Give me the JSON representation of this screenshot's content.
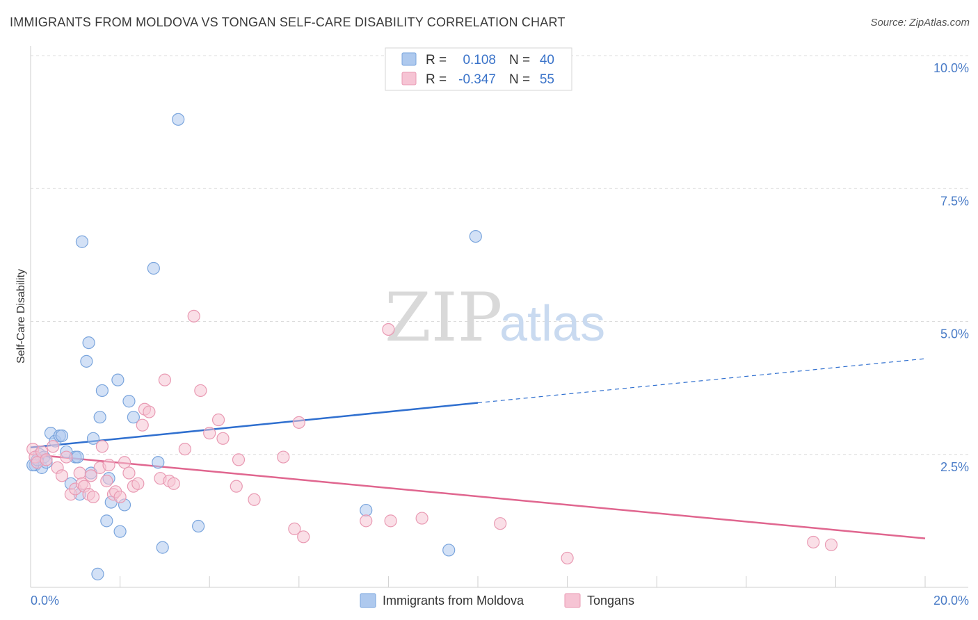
{
  "title": "IMMIGRANTS FROM MOLDOVA VS TONGAN SELF-CARE DISABILITY CORRELATION CHART",
  "source": "Source: ZipAtlas.com",
  "watermark": {
    "zip": "ZIP",
    "atlas": "atlas"
  },
  "legend": {
    "r_label": "R =",
    "n_label": "N =",
    "rows": [
      {
        "r": "0.108",
        "n": "40",
        "color": "#aec9ee",
        "stroke": "#7aa5dd"
      },
      {
        "r": "-0.347",
        "n": "55",
        "color": "#f6c4d4",
        "stroke": "#e99ab3"
      }
    ]
  },
  "bottom_legend": [
    {
      "label": "Immigrants from Moldova",
      "color": "#aec9ee",
      "stroke": "#7aa5dd"
    },
    {
      "label": "Tongans",
      "color": "#f6c4d4",
      "stroke": "#e99ab3"
    }
  ],
  "chart_data": {
    "type": "scatter",
    "title": "IMMIGRANTS FROM MOLDOVA VS TONGAN SELF-CARE DISABILITY CORRELATION CHART",
    "xlabel": "",
    "ylabel": "Self-Care Disability",
    "xlim": [
      0,
      20
    ],
    "ylim": [
      0,
      10
    ],
    "x_tick_labels": [
      "0.0%",
      "20.0%"
    ],
    "y_ticks": [
      2.5,
      5.0,
      7.5,
      10.0
    ],
    "y_tick_labels": [
      "2.5%",
      "5.0%",
      "7.5%",
      "10.0%"
    ],
    "grid": true,
    "legend_position": "top-center",
    "series": [
      {
        "name": "Immigrants from Moldova",
        "color": "#7aa5dd",
        "fill": "#aec9ee",
        "trend_color": "#2f6fcf",
        "trend": {
          "x0": 0,
          "y0": 2.63,
          "x1": 10,
          "y1": 3.47,
          "dash_to_x": 20,
          "dash_to_y": 4.3
        },
        "points": [
          [
            0.1,
            2.3
          ],
          [
            0.2,
            2.5
          ],
          [
            0.25,
            2.25
          ],
          [
            0.3,
            2.45
          ],
          [
            0.35,
            2.35
          ],
          [
            0.45,
            2.9
          ],
          [
            0.55,
            2.75
          ],
          [
            0.65,
            2.85
          ],
          [
            0.7,
            2.85
          ],
          [
            0.8,
            2.55
          ],
          [
            0.9,
            1.95
          ],
          [
            1.0,
            2.45
          ],
          [
            1.05,
            2.45
          ],
          [
            1.1,
            1.75
          ],
          [
            1.15,
            6.5
          ],
          [
            1.25,
            4.25
          ],
          [
            1.3,
            4.6
          ],
          [
            1.35,
            2.15
          ],
          [
            1.4,
            2.8
          ],
          [
            1.5,
            0.25
          ],
          [
            1.55,
            3.2
          ],
          [
            1.6,
            3.7
          ],
          [
            1.7,
            1.25
          ],
          [
            1.75,
            2.05
          ],
          [
            1.8,
            1.6
          ],
          [
            1.95,
            3.9
          ],
          [
            2.0,
            1.05
          ],
          [
            2.1,
            1.55
          ],
          [
            2.2,
            3.5
          ],
          [
            2.3,
            3.2
          ],
          [
            2.75,
            6.0
          ],
          [
            2.85,
            2.35
          ],
          [
            2.95,
            0.75
          ],
          [
            3.3,
            8.8
          ],
          [
            3.75,
            1.15
          ],
          [
            7.5,
            1.45
          ],
          [
            9.35,
            0.7
          ],
          [
            9.95,
            6.6
          ],
          [
            0.05,
            2.3
          ],
          [
            0.15,
            2.4
          ]
        ]
      },
      {
        "name": "Tongans",
        "color": "#e99ab3",
        "fill": "#f6c4d4",
        "trend_color": "#e0668f",
        "trend": {
          "x0": 0,
          "y0": 2.5,
          "x1": 20,
          "y1": 0.92
        },
        "points": [
          [
            0.05,
            2.6
          ],
          [
            0.1,
            2.45
          ],
          [
            0.15,
            2.35
          ],
          [
            0.25,
            2.55
          ],
          [
            0.35,
            2.4
          ],
          [
            0.5,
            2.65
          ],
          [
            0.6,
            2.25
          ],
          [
            0.7,
            2.1
          ],
          [
            0.8,
            2.45
          ],
          [
            0.9,
            1.75
          ],
          [
            1.0,
            1.85
          ],
          [
            1.1,
            2.15
          ],
          [
            1.15,
            1.95
          ],
          [
            1.2,
            1.9
          ],
          [
            1.3,
            1.75
          ],
          [
            1.35,
            2.1
          ],
          [
            1.4,
            1.7
          ],
          [
            1.55,
            2.25
          ],
          [
            1.6,
            2.65
          ],
          [
            1.7,
            2.0
          ],
          [
            1.75,
            2.3
          ],
          [
            1.85,
            1.75
          ],
          [
            1.9,
            1.8
          ],
          [
            2.0,
            1.7
          ],
          [
            2.1,
            2.35
          ],
          [
            2.2,
            2.15
          ],
          [
            2.3,
            1.9
          ],
          [
            2.4,
            1.95
          ],
          [
            2.5,
            3.05
          ],
          [
            2.55,
            3.35
          ],
          [
            2.65,
            3.3
          ],
          [
            2.9,
            2.05
          ],
          [
            3.0,
            3.9
          ],
          [
            3.1,
            2.0
          ],
          [
            3.2,
            1.95
          ],
          [
            3.45,
            2.6
          ],
          [
            3.65,
            5.1
          ],
          [
            3.8,
            3.7
          ],
          [
            4.0,
            2.9
          ],
          [
            4.2,
            3.15
          ],
          [
            4.3,
            2.8
          ],
          [
            4.6,
            1.9
          ],
          [
            4.65,
            2.4
          ],
          [
            5.0,
            1.65
          ],
          [
            5.65,
            2.45
          ],
          [
            5.9,
            1.1
          ],
          [
            6.1,
            0.95
          ],
          [
            6.0,
            3.1
          ],
          [
            7.5,
            1.25
          ],
          [
            8.0,
            4.85
          ],
          [
            8.05,
            1.25
          ],
          [
            8.75,
            1.3
          ],
          [
            10.5,
            1.2
          ],
          [
            12.0,
            0.55
          ],
          [
            17.9,
            0.8
          ]
        ]
      }
    ],
    "extra_points_tongans": [
      [
        17.5,
        0.85
      ]
    ]
  }
}
